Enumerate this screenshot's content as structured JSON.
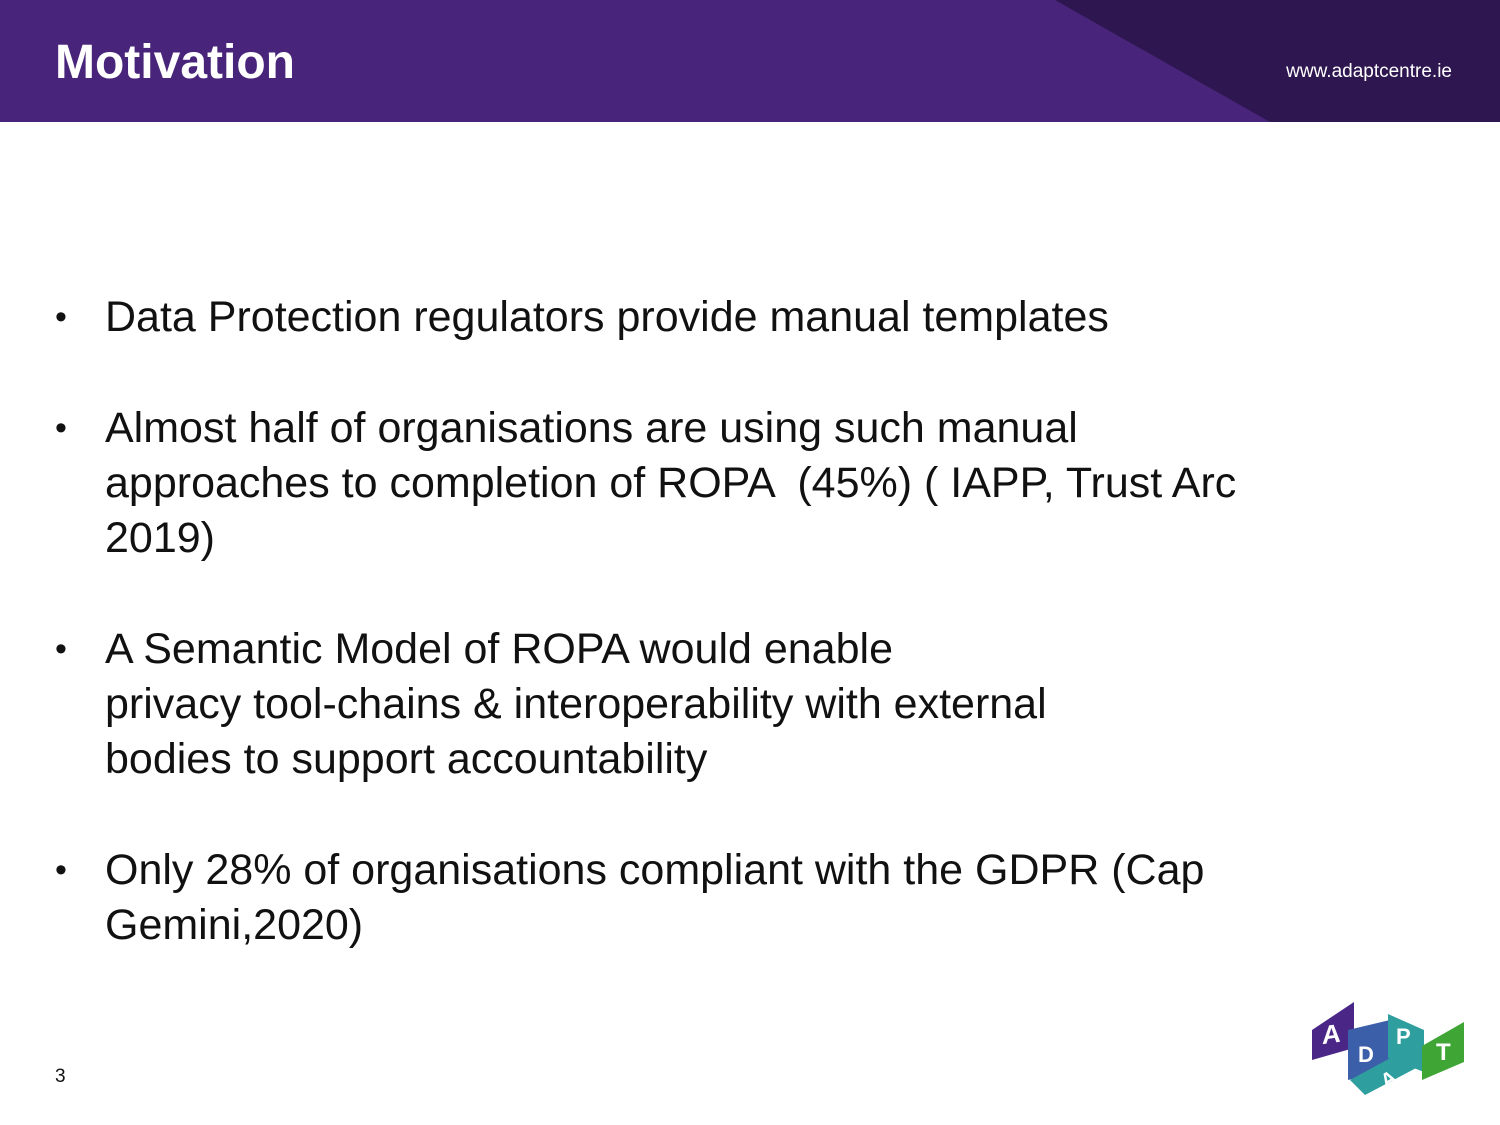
{
  "header": {
    "title": "Motivation",
    "url": "www.adaptcentre.ie"
  },
  "bullets": [
    {
      "lines": [
        "Data Protection regulators provide manual templates"
      ]
    },
    {
      "lines": [
        "Almost half of organisations are using such manual",
        "approaches to completion of ROPA  (45%) ( IAPP, Trust Arc",
        "2019)"
      ]
    },
    {
      "lines": [
        "A Semantic Model of ROPA would enable",
        "privacy tool-chains & interoperability with external",
        "bodies to support accountability"
      ]
    },
    {
      "lines": [
        "Only 28% of organisations compliant with the GDPR (Cap",
        "Gemini,2020)"
      ]
    }
  ],
  "footer": {
    "page_number": "3"
  },
  "logo": {
    "letters": [
      "A",
      "D",
      "P",
      "A",
      "T"
    ]
  },
  "colors": {
    "header_purple": "#48247a",
    "header_dark": "#2e1650",
    "logo_purple": "#4a2787",
    "logo_blue": "#3b5fa9",
    "logo_teal": "#2f9e9e",
    "logo_green": "#3fa535"
  }
}
